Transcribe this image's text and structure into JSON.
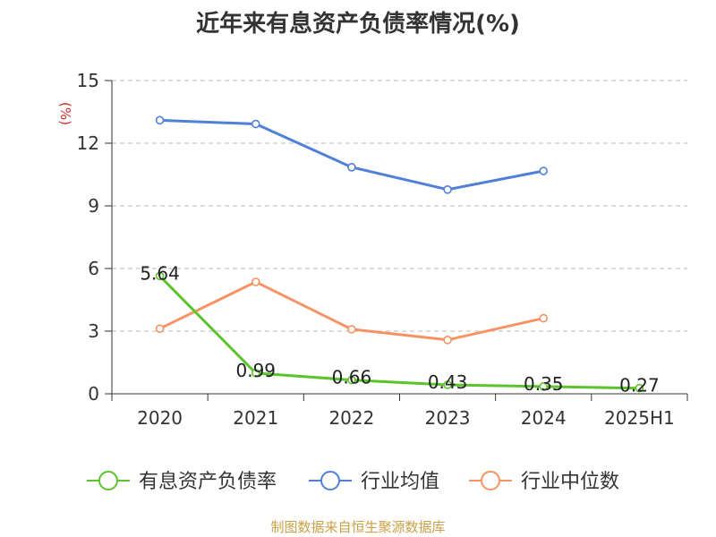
{
  "title": "近年来有息资产负债率情况(%)",
  "source": "制图数据来自恒生聚源数据库",
  "chart_data": {
    "type": "line",
    "title": "近年来有息资产负债率情况(%)",
    "ylabel": "(%)",
    "xlabel": "",
    "categories": [
      "2020",
      "2021",
      "2022",
      "2023",
      "2024",
      "2025H1"
    ],
    "ylim": [
      0,
      15
    ],
    "yticks": [
      0,
      3,
      6,
      9,
      12,
      15
    ],
    "grid": true,
    "legend_position": "bottom",
    "series": [
      {
        "name": "有息资产负债率",
        "color": "#5cc32c",
        "values": [
          5.64,
          0.99,
          0.66,
          0.43,
          0.35,
          0.27
        ],
        "show_labels": true
      },
      {
        "name": "行业均值",
        "color": "#4f7fd6",
        "values": [
          13.1,
          12.92,
          10.85,
          9.78,
          10.67,
          null
        ],
        "show_labels": false
      },
      {
        "name": "行业中位数",
        "color": "#f79363",
        "values": [
          3.12,
          5.36,
          3.09,
          2.58,
          3.62,
          null
        ],
        "show_labels": false
      }
    ]
  }
}
